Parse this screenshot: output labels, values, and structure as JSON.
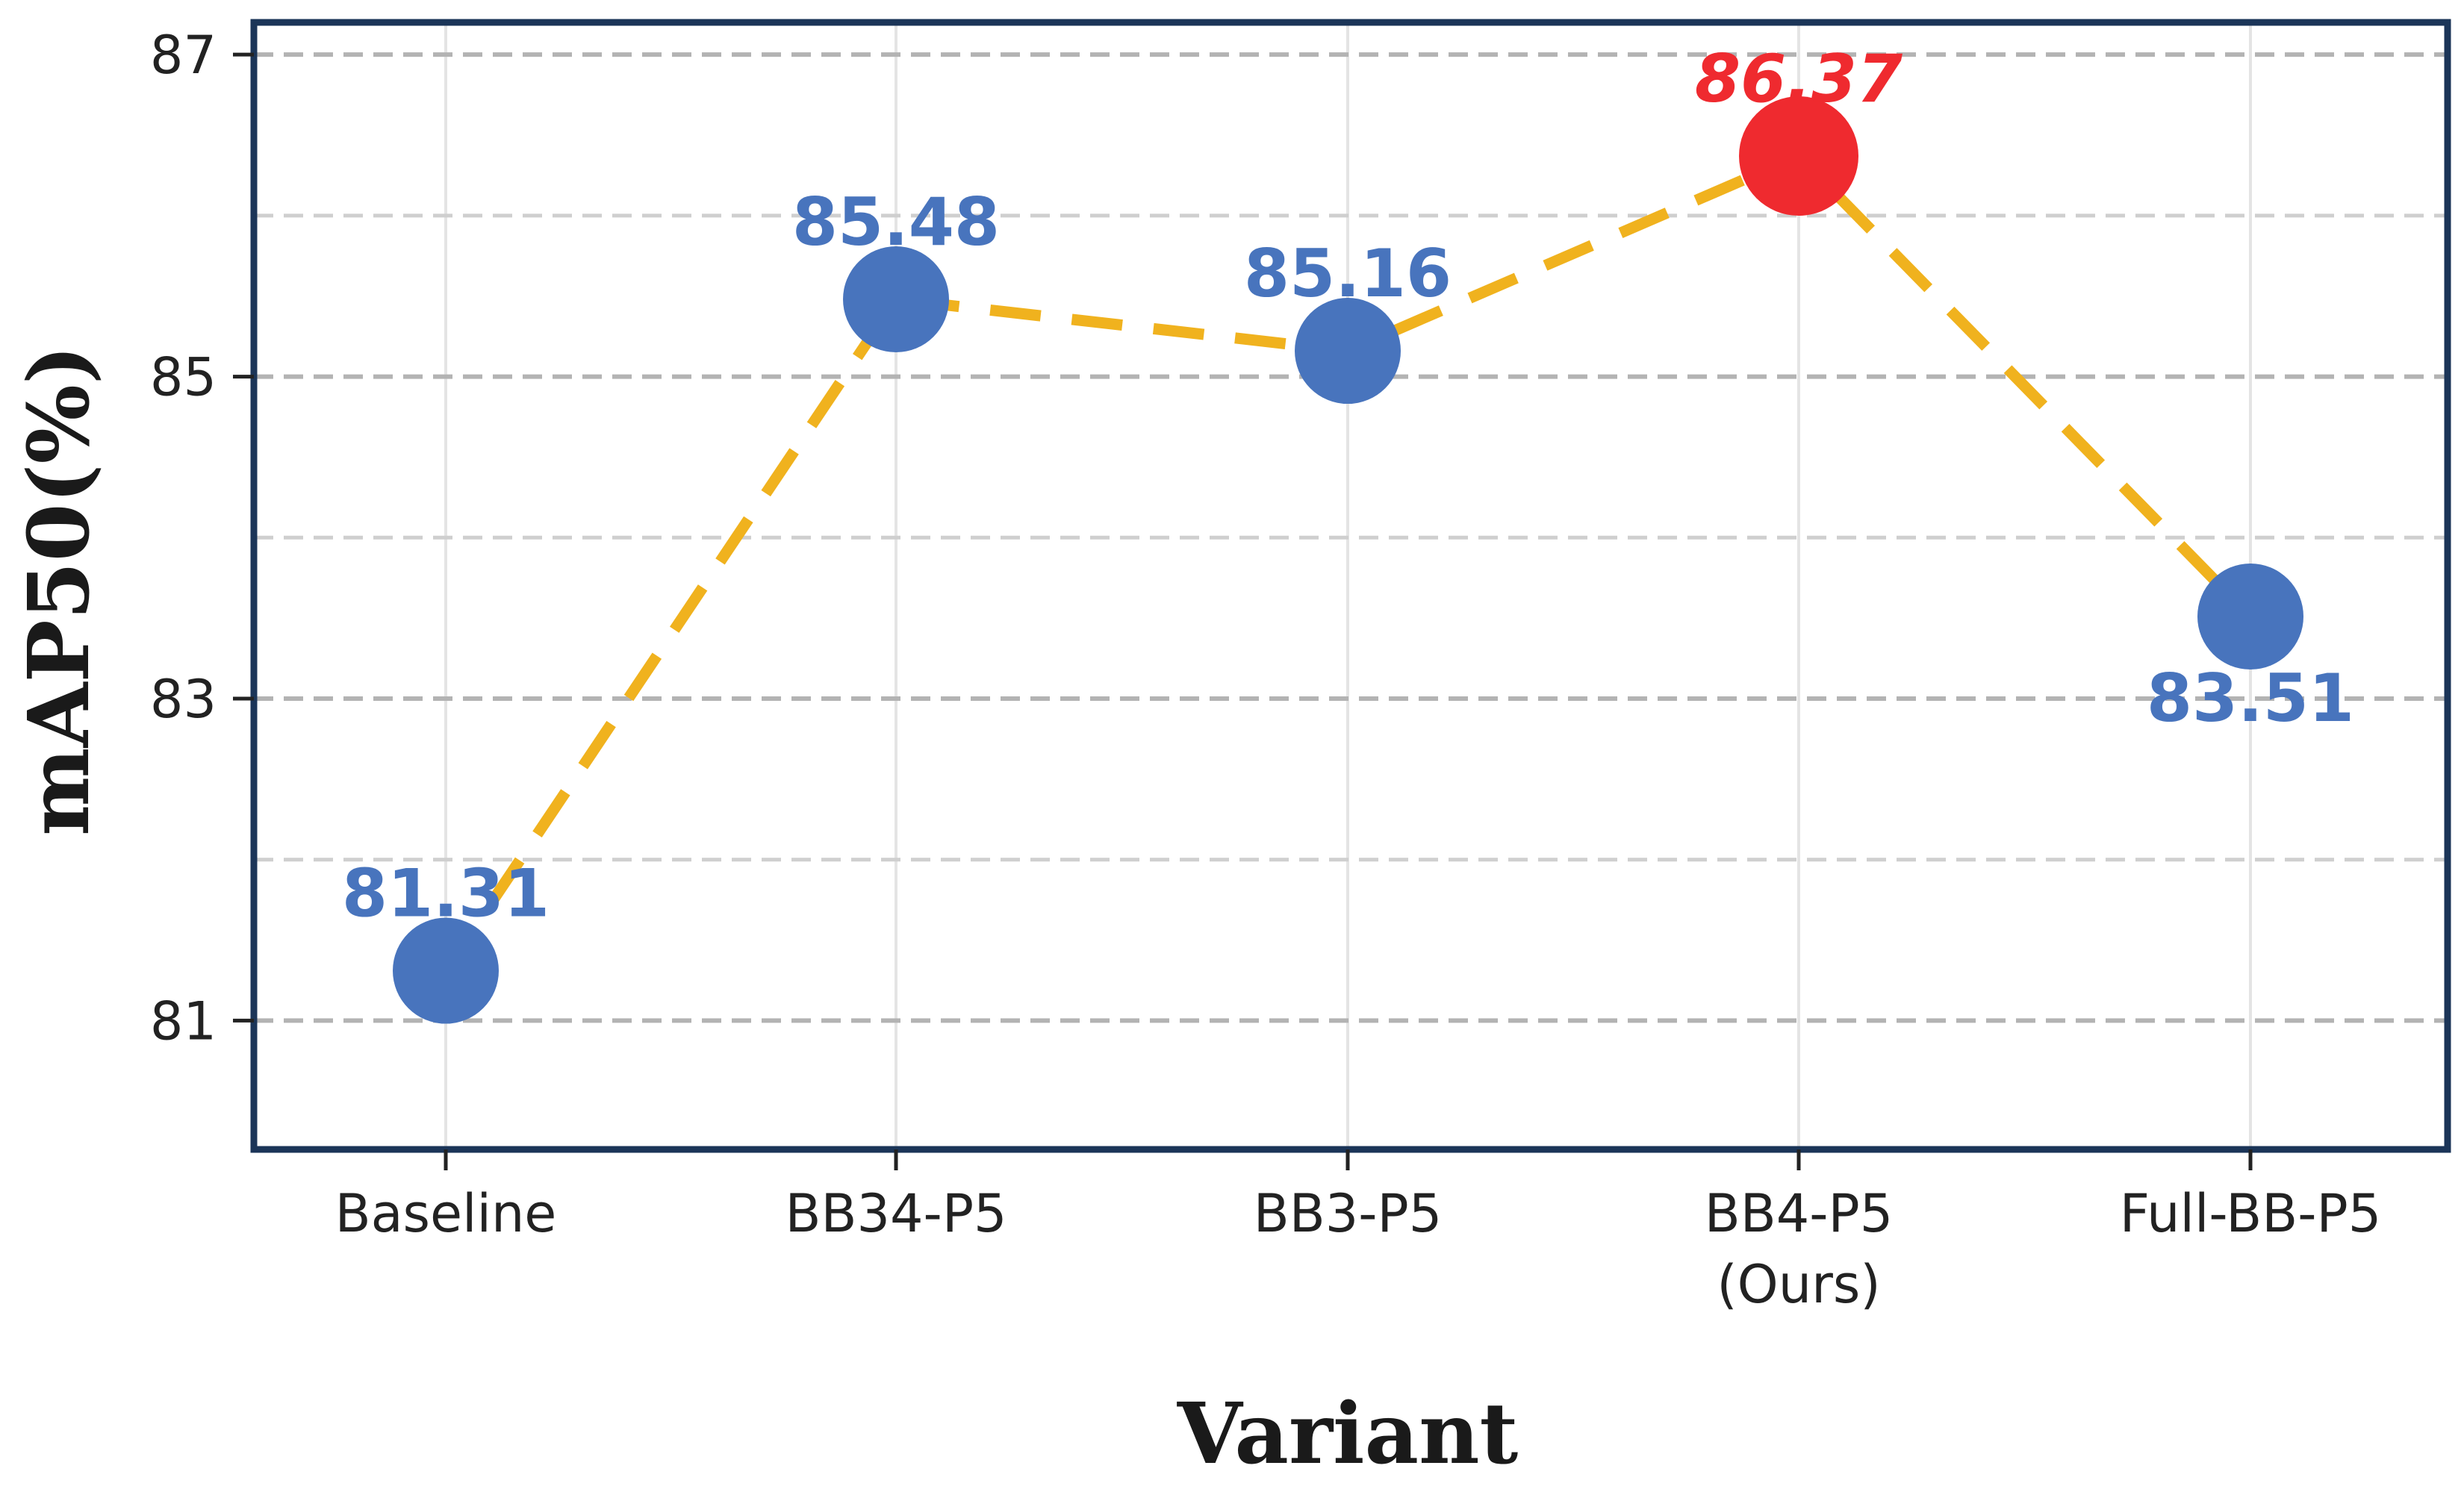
{
  "chart_data": {
    "type": "line",
    "xlabel": "Variant",
    "ylabel": "mAP50(%)",
    "categories": [
      [
        "Baseline"
      ],
      [
        "BB34-P5"
      ],
      [
        "BB3-P5"
      ],
      [
        "BB4-P5",
        "(Ours)"
      ],
      [
        "Full-BB-P5"
      ]
    ],
    "values": [
      81.31,
      85.48,
      85.16,
      86.37,
      83.51
    ],
    "labels": [
      "81.31",
      "85.48",
      "85.16",
      "86.37",
      "83.51"
    ],
    "label_placement": [
      "above",
      "above",
      "above",
      "above",
      "below"
    ],
    "highlight_index": 3,
    "ylim": [
      80.2,
      87.2
    ],
    "yticks_major": [
      81,
      83,
      85,
      87
    ],
    "ytick_labels": [
      "81",
      "83",
      "85",
      "87"
    ],
    "ygrid_minor": [
      82,
      84,
      86
    ],
    "grid": true,
    "colors": {
      "marker": "#4874bd",
      "highlight": "#ef2a2f",
      "line": "#f0b21e",
      "frame": "#1b3558",
      "grid_major": "#b3b3b3",
      "grid_minor": "#cfcfcf",
      "grid_vertical": "#e4e4e4"
    }
  }
}
